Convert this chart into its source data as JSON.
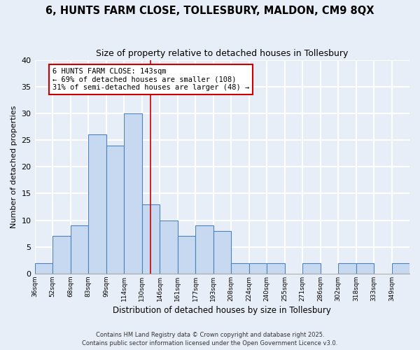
{
  "title": "6, HUNTS FARM CLOSE, TOLLESBURY, MALDON, CM9 8QX",
  "subtitle": "Size of property relative to detached houses in Tollesbury",
  "xlabel": "Distribution of detached houses by size in Tollesbury",
  "ylabel": "Number of detached properties",
  "bin_labels": [
    "36sqm",
    "52sqm",
    "68sqm",
    "83sqm",
    "99sqm",
    "114sqm",
    "130sqm",
    "146sqm",
    "161sqm",
    "177sqm",
    "193sqm",
    "208sqm",
    "224sqm",
    "240sqm",
    "255sqm",
    "271sqm",
    "286sqm",
    "302sqm",
    "318sqm",
    "333sqm",
    "349sqm"
  ],
  "counts": [
    2,
    7,
    9,
    26,
    24,
    30,
    13,
    10,
    7,
    9,
    8,
    2,
    2,
    2,
    0,
    2,
    0,
    2,
    2,
    0,
    2
  ],
  "bar_color": "#c6d9f0",
  "bar_edge_color": "#4f81bd",
  "vline_x": 6.5,
  "vline_color": "#cc0000",
  "annotation_text": "6 HUNTS FARM CLOSE: 143sqm\n← 69% of detached houses are smaller (108)\n31% of semi-detached houses are larger (48) →",
  "annotation_box_color": "white",
  "annotation_box_edge": "#cc0000",
  "ylim": [
    0,
    40
  ],
  "yticks": [
    0,
    5,
    10,
    15,
    20,
    25,
    30,
    35,
    40
  ],
  "background_color": "#e8eef8",
  "grid_color": "white",
  "footer1": "Contains HM Land Registry data © Crown copyright and database right 2025.",
  "footer2": "Contains public sector information licensed under the Open Government Licence v3.0."
}
